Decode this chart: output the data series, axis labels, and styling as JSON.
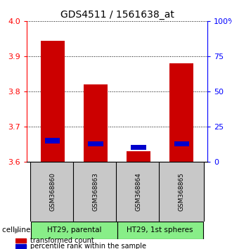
{
  "title": "GDS4511 / 1561638_at",
  "samples": [
    "GSM368860",
    "GSM368863",
    "GSM368864",
    "GSM368865"
  ],
  "red_tops": [
    3.945,
    3.82,
    3.63,
    3.88
  ],
  "blue_tops": [
    3.668,
    3.658,
    3.648,
    3.658
  ],
  "blue_bottoms": [
    3.652,
    3.645,
    3.635,
    3.645
  ],
  "bar_base": 3.6,
  "ylim_left": [
    3.6,
    4.0
  ],
  "ylim_right": [
    0,
    100
  ],
  "yticks_left": [
    3.6,
    3.7,
    3.8,
    3.9,
    4.0
  ],
  "yticks_right": [
    0,
    25,
    50,
    75,
    100
  ],
  "ytick_labels_right": [
    "0",
    "25",
    "50",
    "75",
    "100%"
  ],
  "legend_items": [
    {
      "color": "#cc0000",
      "label": "transformed count"
    },
    {
      "color": "#0000cc",
      "label": "percentile rank within the sample"
    }
  ],
  "bar_width": 0.55,
  "blue_bar_width": 0.35,
  "red_color": "#cc0000",
  "blue_color": "#0000cc",
  "sample_box_color": "#c8c8c8",
  "cell_line_color": "#88ee88",
  "background_color": "#ffffff",
  "title_fontsize": 10,
  "tick_fontsize": 8,
  "label_fontsize": 8,
  "bar_positions": [
    1,
    2,
    3,
    4
  ],
  "group1_label": "HT29, parental",
  "group2_label": "HT29, 1st spheres",
  "cell_line_text": "cell line"
}
